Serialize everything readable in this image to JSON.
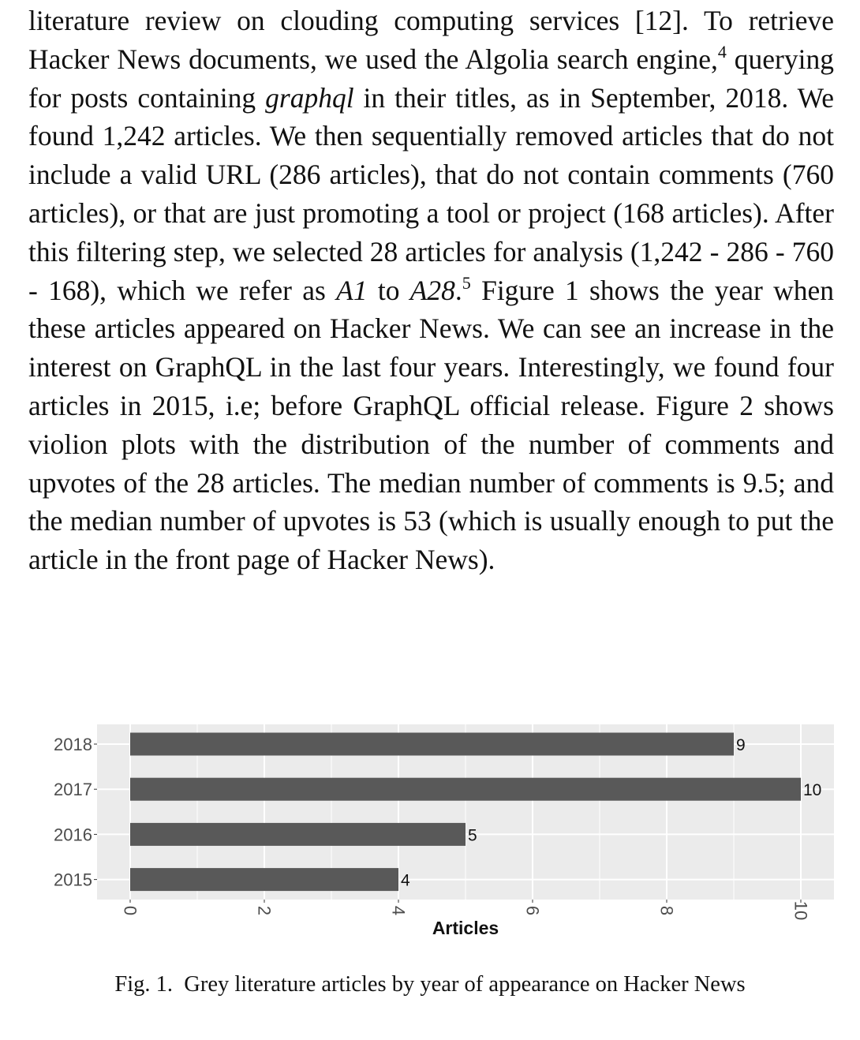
{
  "paragraph": {
    "s1": "literature review on clouding computing services [12]. To retrieve Hacker News documents, we used the Algolia search engine,",
    "fn1": "4",
    "s2": " querying for posts containing ",
    "em1": "graphql",
    "s3": " in their titles, as in September, 2018. We found 1,242 articles. We then sequentially removed articles that do not include a valid URL (286 articles), that do not contain comments (760 articles), or that are just promoting a tool or project (168 articles). After this filtering step, we selected 28 articles for analysis (1,242 - 286 - 760 - 168), which we refer as ",
    "em2": "A1",
    "s4": " to ",
    "em3": "A28",
    "s5": ".",
    "fn2": "5",
    "s6": " Figure 1 shows the year when these articles appeared on Hacker News. We can see an increase in the interest on GraphQL in the last four years. Interestingly, we found four articles in 2015, i.e; before GraphQL official release. Figure 2 shows violion plots with the distribution of the number of comments and upvotes of the 28 articles. The median number of comments is 9.5; and the median number of upvotes is 53 (which is usually enough to put the article in the front page of Hacker News)."
  },
  "chart_data": {
    "type": "bar",
    "orientation": "horizontal",
    "categories": [
      "2018",
      "2017",
      "2016",
      "2015"
    ],
    "values": [
      9,
      10,
      5,
      4
    ],
    "data_labels": [
      "9",
      "10",
      "5",
      "4"
    ],
    "xlabel": "Articles",
    "ylabel": "",
    "xlim": [
      0,
      10.5
    ],
    "x_ticks": [
      0,
      2,
      4,
      6,
      8,
      10
    ],
    "x_tick_labels": [
      "0",
      "2",
      "4",
      "6",
      "8",
      "10"
    ],
    "x_tick_label_rotation": "vertical",
    "grid": true,
    "legend": "none",
    "colors": {
      "bar": "#595959",
      "panel": "#ebebeb",
      "grid": "#ffffff"
    }
  },
  "caption": {
    "label": "Fig. 1.",
    "text": "Grey literature articles by year of appearance on Hacker News"
  }
}
